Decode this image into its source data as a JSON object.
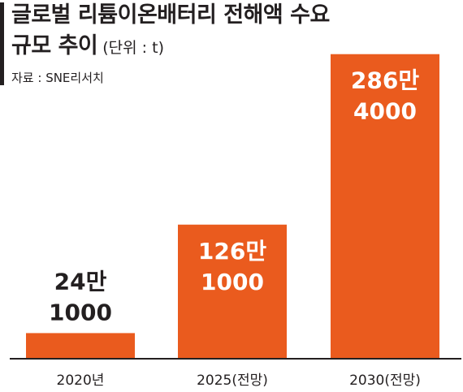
{
  "chart_data": {
    "type": "bar",
    "title": "글로벌 리튬이온배터리 전해액 수요",
    "title_line2": "규모 추이",
    "unit": "(단위 : t)",
    "source": "자료 : SNE리서치",
    "categories": [
      "2020년",
      "2025(전망)",
      "2030(전망)"
    ],
    "values": [
      241000,
      1261000,
      2864000
    ],
    "data_labels": [
      [
        "24만",
        "1000"
      ],
      [
        "126만",
        "1000"
      ],
      [
        "286만",
        "4000"
      ]
    ],
    "ylim": [
      0,
      2900000
    ],
    "grid": false,
    "bar_color": "#ea5b1e",
    "axis_color": "#231f20"
  }
}
